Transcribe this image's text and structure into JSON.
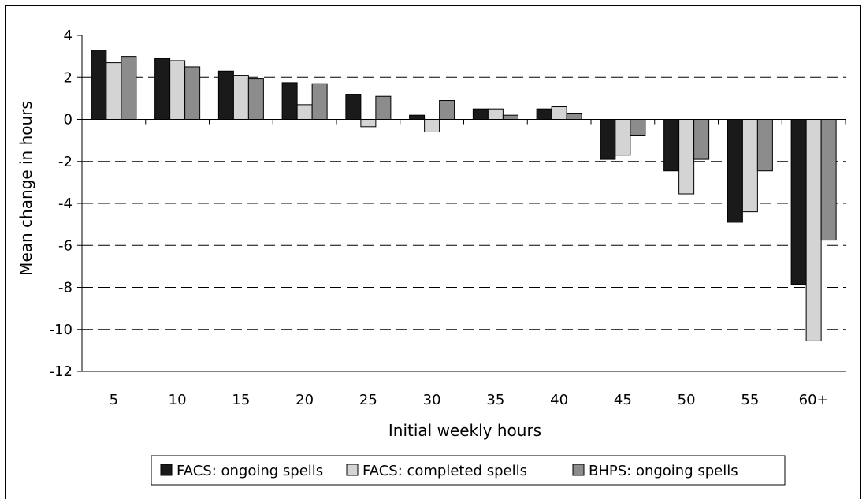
{
  "chart_data": {
    "type": "bar",
    "title": "",
    "xlabel": "Initial weekly hours",
    "ylabel": "Mean change in hours",
    "categories": [
      "5",
      "10",
      "15",
      "20",
      "25",
      "30",
      "35",
      "40",
      "45",
      "50",
      "55",
      "60+"
    ],
    "ylim": [
      -12,
      4
    ],
    "yticks": [
      4,
      2,
      0,
      -2,
      -4,
      -6,
      -8,
      -10,
      -12
    ],
    "grid": "dashed horizontal",
    "legend_position": "bottom",
    "series": [
      {
        "name": "FACS: ongoing spells",
        "color": "#1a1a1a",
        "values": [
          3.3,
          2.9,
          2.3,
          1.75,
          1.2,
          0.2,
          0.5,
          0.5,
          -1.9,
          -2.45,
          -4.9,
          -7.85
        ]
      },
      {
        "name": "FACS: completed spells",
        "color": "#d4d4d4",
        "values": [
          2.7,
          2.8,
          2.1,
          0.7,
          -0.35,
          -0.6,
          0.5,
          0.6,
          -1.7,
          -3.55,
          -4.4,
          -10.55
        ]
      },
      {
        "name": "BHPS: ongoing spells",
        "color": "#8c8c8c",
        "values": [
          3.0,
          2.5,
          1.95,
          1.7,
          1.1,
          0.9,
          0.2,
          0.3,
          -0.75,
          -1.9,
          -2.45,
          -5.75
        ]
      }
    ]
  }
}
